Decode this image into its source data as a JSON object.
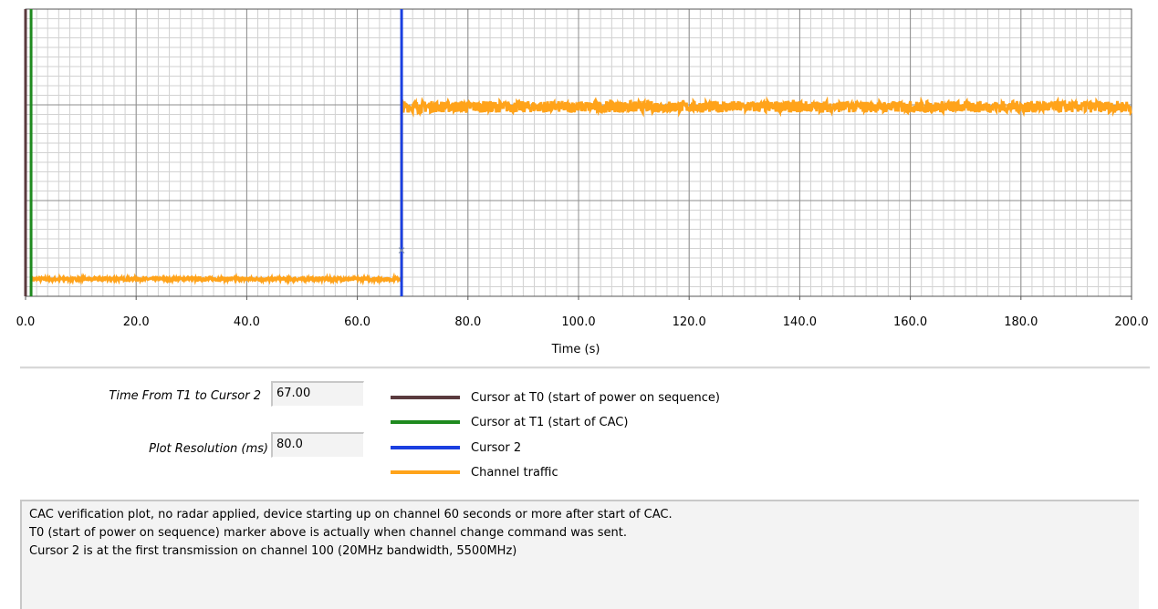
{
  "chart_data": {
    "type": "line",
    "xlabel": "Time (s)",
    "ylabel": "",
    "xlim": [
      0,
      200
    ],
    "x_ticks": [
      "0.0",
      "20.0",
      "40.0",
      "60.0",
      "80.0",
      "100.0",
      "120.0",
      "140.0",
      "160.0",
      "180.0",
      "200.0"
    ],
    "grid": true,
    "series": [
      {
        "name": "Channel traffic",
        "color": "#ffa31a",
        "segments": [
          {
            "x_start": 1.0,
            "x_end": 68.0,
            "level": 0.06,
            "noise": 0.005
          },
          {
            "x_start": 68.0,
            "x_end": 200.0,
            "level": 0.66,
            "noise": 0.02
          }
        ]
      }
    ],
    "cursors": [
      {
        "name": "Cursor at T0 (start of power on sequence)",
        "x": 0.0,
        "color": "#5a3a3e"
      },
      {
        "name": "Cursor at T1 (start of CAC)",
        "x": 1.0,
        "color": "#1f8a1f"
      },
      {
        "name": "Cursor 2",
        "x": 68.0,
        "color": "#1a3fe0"
      }
    ]
  },
  "controls": {
    "time_label": "Time From T1 to Cursor 2",
    "time_value": "67.00",
    "resolution_label": "Plot Resolution (ms)",
    "resolution_value": "80.0"
  },
  "legend": [
    {
      "label": "Cursor at T0 (start of power on sequence)",
      "color": "#5a3a3e"
    },
    {
      "label": "Cursor at T1 (start of CAC)",
      "color": "#1f8a1f"
    },
    {
      "label": "Cursor 2",
      "color": "#1a3fe0"
    },
    {
      "label": "Channel traffic",
      "color": "#ffa31a"
    }
  ],
  "notes": [
    "CAC verification plot, no radar applied, device starting up on channel 60 seconds or more after start of CAC.",
    "T0 (start of power on sequence) marker above is actually when channel change command was sent.",
    "Cursor 2 is at the first transmission on channel 100 (20MHz bandwidth, 5500MHz)"
  ]
}
